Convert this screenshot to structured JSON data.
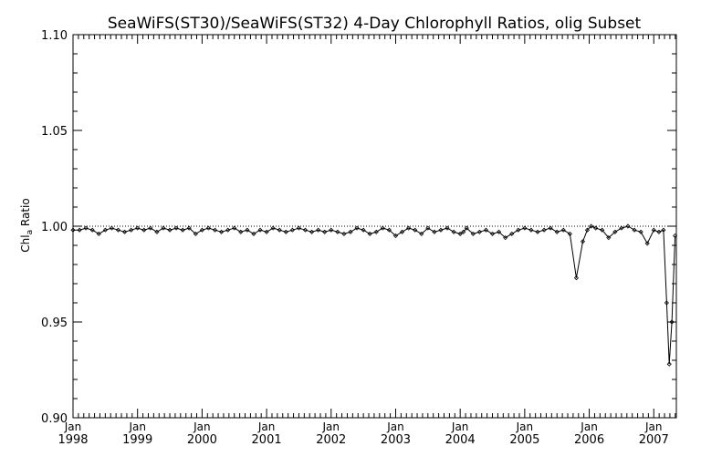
{
  "chart_data": {
    "type": "line",
    "title": "SeaWiFS(ST30)/SeaWiFS(ST32) 4-Day Chlorophyll Ratios, olig Subset",
    "ylabel_main": "Chl",
    "ylabel_sub": "a",
    "ylabel_suffix": " Ratio",
    "xlabel": "",
    "ylim": [
      0.9,
      1.1
    ],
    "xlim": [
      1998.0,
      2007.35
    ],
    "reference_line": 1.0,
    "y_ticks": [
      "0.90",
      "0.95",
      "1.00",
      "1.05",
      "1.10"
    ],
    "y_tick_values": [
      0.9,
      0.95,
      1.0,
      1.05,
      1.1
    ],
    "x_ticks": [
      {
        "month": "Jan",
        "year": "1998",
        "x": 1998
      },
      {
        "month": "Jan",
        "year": "1999",
        "x": 1999
      },
      {
        "month": "Jan",
        "year": "2000",
        "x": 2000
      },
      {
        "month": "Jan",
        "year": "2001",
        "x": 2001
      },
      {
        "month": "Jan",
        "year": "2002",
        "x": 2002
      },
      {
        "month": "Jan",
        "year": "2003",
        "x": 2003
      },
      {
        "month": "Jan",
        "year": "2004",
        "x": 2004
      },
      {
        "month": "Jan",
        "year": "2005",
        "x": 2005
      },
      {
        "month": "Jan",
        "year": "2006",
        "x": 2006
      },
      {
        "month": "Jan",
        "year": "2007",
        "x": 2007
      }
    ],
    "series": [
      {
        "x": [
          1998.0,
          1998.1,
          1998.2,
          1998.3,
          1998.4,
          1998.5,
          1998.6,
          1998.7,
          1998.8,
          1998.9,
          1999.0,
          1999.1,
          1999.2,
          1999.3,
          1999.4,
          1999.5,
          1999.6,
          1999.7,
          1999.8,
          1999.9,
          2000.0,
          2000.1,
          2000.2,
          2000.3,
          2000.4,
          2000.5,
          2000.6,
          2000.7,
          2000.8,
          2000.9,
          2001.0,
          2001.1,
          2001.2,
          2001.3,
          2001.4,
          2001.5,
          2001.6,
          2001.7,
          2001.8,
          2001.9,
          2002.0,
          2002.1,
          2002.2,
          2002.3,
          2002.4,
          2002.5,
          2002.6,
          2002.7,
          2002.8,
          2002.9,
          2003.0,
          2003.1,
          2003.2,
          2003.3,
          2003.4,
          2003.5,
          2003.6,
          2003.7,
          2003.8,
          2003.9,
          2004.0,
          2004.05,
          2004.1,
          2004.2,
          2004.3,
          2004.4,
          2004.5,
          2004.6,
          2004.7,
          2004.8,
          2004.9,
          2005.0,
          2005.1,
          2005.2,
          2005.3,
          2005.4,
          2005.5,
          2005.6,
          2005.7,
          2005.8,
          2005.9,
          2005.97,
          2006.03,
          2006.1,
          2006.2,
          2006.3,
          2006.4,
          2006.5,
          2006.6,
          2006.7,
          2006.8,
          2006.9,
          2007.0,
          2007.08,
          2007.15,
          2007.2,
          2007.24,
          2007.28,
          2007.33
        ],
        "y": [
          0.998,
          0.998,
          0.999,
          0.998,
          0.996,
          0.998,
          0.999,
          0.998,
          0.997,
          0.998,
          0.999,
          0.998,
          0.999,
          0.997,
          0.999,
          0.998,
          0.999,
          0.998,
          0.999,
          0.996,
          0.998,
          0.999,
          0.998,
          0.997,
          0.998,
          0.999,
          0.997,
          0.998,
          0.996,
          0.998,
          0.997,
          0.999,
          0.998,
          0.997,
          0.998,
          0.999,
          0.998,
          0.997,
          0.998,
          0.997,
          0.998,
          0.997,
          0.996,
          0.997,
          0.999,
          0.998,
          0.996,
          0.997,
          0.999,
          0.998,
          0.995,
          0.997,
          0.999,
          0.998,
          0.996,
          0.999,
          0.997,
          0.998,
          0.999,
          0.997,
          0.996,
          0.997,
          0.999,
          0.996,
          0.997,
          0.998,
          0.996,
          0.997,
          0.994,
          0.996,
          0.998,
          0.999,
          0.998,
          0.997,
          0.998,
          0.999,
          0.997,
          0.998,
          0.996,
          0.973,
          0.992,
          0.998,
          1.0,
          0.999,
          0.998,
          0.994,
          0.997,
          0.999,
          1.0,
          0.998,
          0.997,
          0.991,
          0.998,
          0.997,
          0.998,
          0.96,
          0.928,
          0.95,
          0.995
        ]
      }
    ]
  }
}
